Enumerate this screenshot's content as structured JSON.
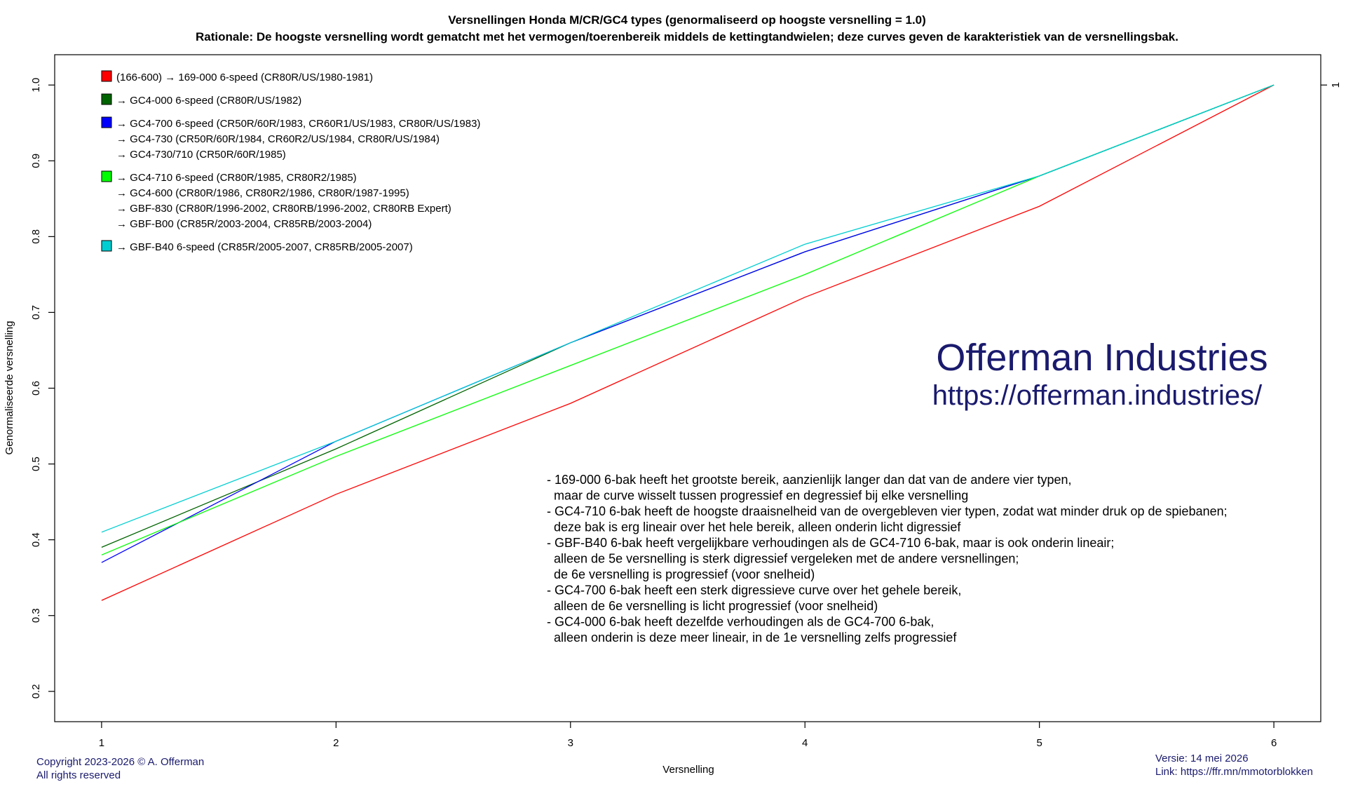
{
  "chart_data": {
    "type": "line",
    "title": "Versnellingen Honda M/CR/GC4 types (genormaliseerd op hoogste versnelling = 1.0)",
    "subtitle": "Rationale: De hoogste versnelling wordt gematcht met het vermogen/toerenbereik middels de kettingtandwielen; deze curves geven de karakteristiek van de versnellingsbak.",
    "xlabel": "Versnelling",
    "ylabel": "Genormaliseerde versnelling",
    "x": [
      1,
      2,
      3,
      4,
      5,
      6
    ],
    "xlim": [
      0.8,
      6.2
    ],
    "ylim": [
      0.16,
      1.04
    ],
    "xticks": [
      "1",
      "2",
      "3",
      "4",
      "5",
      "6"
    ],
    "yticks": [
      "0.2",
      "0.3",
      "0.4",
      "0.5",
      "0.6",
      "0.7",
      "0.8",
      "0.9",
      "1.0"
    ],
    "right_tick": "1",
    "grid": false,
    "legend_position": "top-left",
    "series": [
      {
        "name": "(166-600) → 169-000 6-speed (CR80R/US/1980-1981)",
        "color": "#ff0000",
        "values": [
          0.32,
          0.46,
          0.58,
          0.72,
          0.84,
          1.0
        ]
      },
      {
        "name": "→ GC4-000 6-speed (CR80R/US/1982)",
        "color": "#006400",
        "values": [
          0.39,
          0.52,
          0.66,
          0.78,
          0.88,
          1.0
        ]
      },
      {
        "name": "→ GC4-700 6-speed (CR50R/60R/1983, CR60R1/US/1983, CR80R/US/1983)",
        "color": "#0000ff",
        "values": [
          0.37,
          0.53,
          0.66,
          0.78,
          0.88,
          1.0
        ]
      },
      {
        "name": "→ GC4-710 6-speed (CR80R/1985, CR80R2/1985)",
        "color": "#00ff00",
        "values": [
          0.38,
          0.51,
          0.63,
          0.75,
          0.88,
          1.0
        ]
      },
      {
        "name": "→ GBF-B40 6-speed (CR85R/2005-2007, CR85RB/2005-2007)",
        "color": "#00ced1",
        "values": [
          0.41,
          0.53,
          0.66,
          0.79,
          0.88,
          1.0
        ]
      }
    ],
    "legend_extra": [
      [],
      [],
      [
        "→ GC4-730 (CR50R/60R/1984, CR60R2/US/1984, CR80R/US/1984)",
        "→ GC4-730/710 (CR50R/60R/1985)"
      ],
      [
        "→ GC4-600 (CR80R/1986, CR80R2/1986, CR80R/1987-1995)",
        "→ GBF-830 (CR80R/1996-2002, CR80RB/1996-2002, CR80RB Expert)",
        "→ GBF-B00 (CR85R/2003-2004, CR85RB/2003-2004)"
      ],
      []
    ],
    "annotations": [
      "- 169-000 6-bak heeft het grootste bereik, aanzienlijk langer dan dat van de andere vier typen,",
      "  maar de curve wisselt tussen progressief en degressief bij elke versnelling",
      "- GC4-710 6-bak heeft de hoogste draaisnelheid van de overgebleven vier typen, zodat wat minder druk op de spiebanen;",
      "  deze bak is erg lineair over het hele bereik, alleen onderin licht digressief",
      "- GBF-B40 6-bak heeft vergelijkbare verhoudingen als de GC4-710 6-bak, maar is ook onderin lineair;",
      "  alleen de 5e versnelling is sterk digressief vergeleken met de andere versnellingen;",
      "  de 6e versnelling is progressief (voor snelheid)",
      "- GC4-700 6-bak heeft een sterk digressieve curve over het gehele bereik,",
      "  alleen de 6e versnelling is licht progressief (voor snelheid)",
      "- GC4-000 6-bak heeft dezelfde verhoudingen als de GC4-700 6-bak,",
      "  alleen onderin is deze meer lineair, in de 1e versnelling zelfs progressief"
    ]
  },
  "brand": {
    "name": "Offerman Industries",
    "url": "https://offerman.industries/",
    "color": "#1a1a6e"
  },
  "footer": {
    "copyright": "Copyright 2023-2026 © A. Offerman",
    "rights": "All rights reserved",
    "version": "Versie: 14 mei 2026",
    "link": "Link: https://ffr.mn/mmotorblokken"
  }
}
